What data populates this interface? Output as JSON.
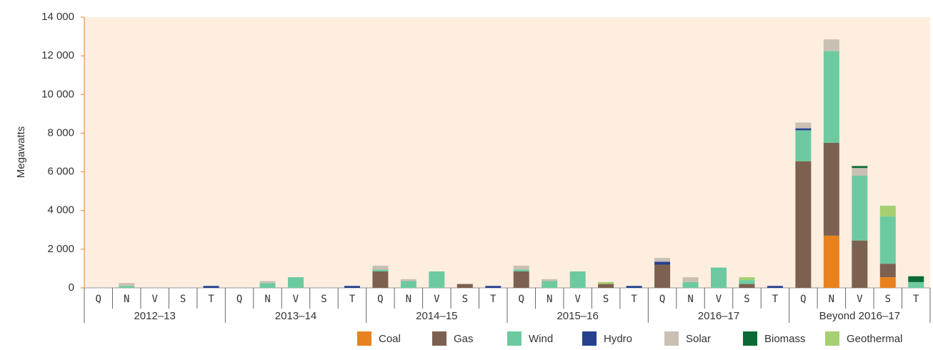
{
  "chart_data": {
    "type": "stacked_bar",
    "y_label": "Megawatts",
    "groups": [
      "2012–13",
      "2013–14",
      "2014–15",
      "2015–16",
      "2016–17",
      "Beyond 2016–17"
    ],
    "categories": [
      "Q",
      "N",
      "V",
      "S",
      "T",
      "Q",
      "N",
      "V",
      "S",
      "T",
      "Q",
      "N",
      "V",
      "S",
      "T",
      "Q",
      "N",
      "V",
      "S",
      "T",
      "Q",
      "N",
      "V",
      "S",
      "T",
      "Q",
      "N",
      "V",
      "S",
      "T"
    ],
    "series": [
      {
        "name": "Coal",
        "color": "#e8821e",
        "values": [
          0,
          0,
          0,
          0,
          0,
          0,
          0,
          0,
          0,
          0,
          0,
          0,
          0,
          0,
          0,
          0,
          0,
          0,
          0,
          0,
          0,
          0,
          0,
          0,
          0,
          0,
          2700,
          0,
          550,
          0
        ]
      },
      {
        "name": "Gas",
        "color": "#7d6150",
        "values": [
          0,
          0,
          0,
          0,
          0,
          0,
          0,
          0,
          0,
          0,
          850,
          0,
          0,
          200,
          0,
          850,
          0,
          0,
          200,
          0,
          1200,
          0,
          0,
          200,
          0,
          6550,
          4800,
          2450,
          700,
          0
        ]
      },
      {
        "name": "Wind",
        "color": "#6dcaa0",
        "values": [
          0,
          100,
          0,
          0,
          0,
          0,
          250,
          550,
          0,
          0,
          100,
          350,
          850,
          0,
          0,
          100,
          350,
          850,
          0,
          0,
          0,
          300,
          1050,
          200,
          0,
          1600,
          4750,
          3350,
          2450,
          300
        ]
      },
      {
        "name": "Hydro",
        "color": "#263f8f",
        "values": [
          0,
          0,
          0,
          0,
          100,
          0,
          0,
          0,
          0,
          100,
          0,
          0,
          0,
          0,
          100,
          0,
          0,
          0,
          0,
          100,
          150,
          0,
          0,
          0,
          100,
          100,
          0,
          0,
          0,
          0
        ]
      },
      {
        "name": "Solar",
        "color": "#c9c0b4",
        "values": [
          0,
          150,
          0,
          0,
          0,
          0,
          100,
          0,
          0,
          0,
          200,
          100,
          0,
          0,
          0,
          200,
          100,
          0,
          0,
          0,
          200,
          250,
          0,
          0,
          0,
          300,
          600,
          400,
          0,
          0
        ]
      },
      {
        "name": "Biomass",
        "color": "#0a6a35",
        "values": [
          0,
          0,
          0,
          0,
          0,
          0,
          0,
          0,
          0,
          0,
          0,
          0,
          0,
          0,
          0,
          0,
          0,
          0,
          0,
          0,
          0,
          0,
          0,
          0,
          0,
          0,
          0,
          100,
          0,
          300
        ]
      },
      {
        "name": "Geothermal",
        "color": "#a6cf72",
        "values": [
          0,
          0,
          0,
          0,
          0,
          0,
          0,
          0,
          0,
          0,
          0,
          0,
          0,
          0,
          0,
          0,
          0,
          0,
          100,
          0,
          0,
          0,
          0,
          150,
          0,
          0,
          0,
          0,
          550,
          0
        ]
      }
    ],
    "ylim": [
      0,
      14000
    ],
    "yticks": [
      0,
      {
        "value": 2000,
        "label": "2 000"
      },
      {
        "value": 4000,
        "label": "4 000"
      },
      {
        "value": 6000,
        "label": "6 000"
      },
      {
        "value": 8000,
        "label": "8 000"
      },
      {
        "value": 10000,
        "label": "10 000"
      },
      {
        "value": 12000,
        "label": "12 000"
      },
      {
        "value": 14000,
        "label": "14 000"
      }
    ]
  }
}
